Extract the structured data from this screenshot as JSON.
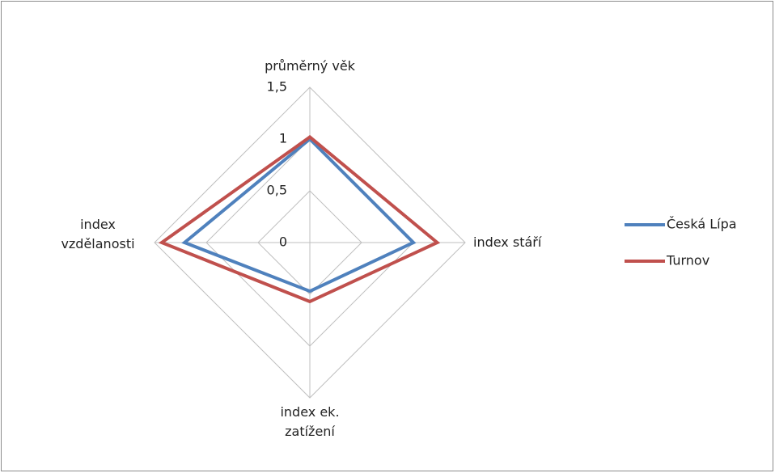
{
  "chart_data": {
    "type": "radar",
    "categories": [
      "průměrný věk",
      "index stáří",
      "index ek. zatížení",
      "index vzdělanosti"
    ],
    "series": [
      {
        "name": "Česká Lípa",
        "color": "#4f81bd",
        "values": [
          1.0,
          1.0,
          0.47,
          1.21
        ]
      },
      {
        "name": "Turnov",
        "color": "#c0504d",
        "values": [
          1.02,
          1.23,
          0.57,
          1.43
        ]
      }
    ],
    "ylim": [
      0,
      1.5
    ],
    "yticks": [
      0,
      {
        "value": 0.5,
        "label": "0,5"
      },
      1,
      {
        "value": 1.5,
        "label": "1,5"
      }
    ],
    "grid": true,
    "legend": "right"
  }
}
